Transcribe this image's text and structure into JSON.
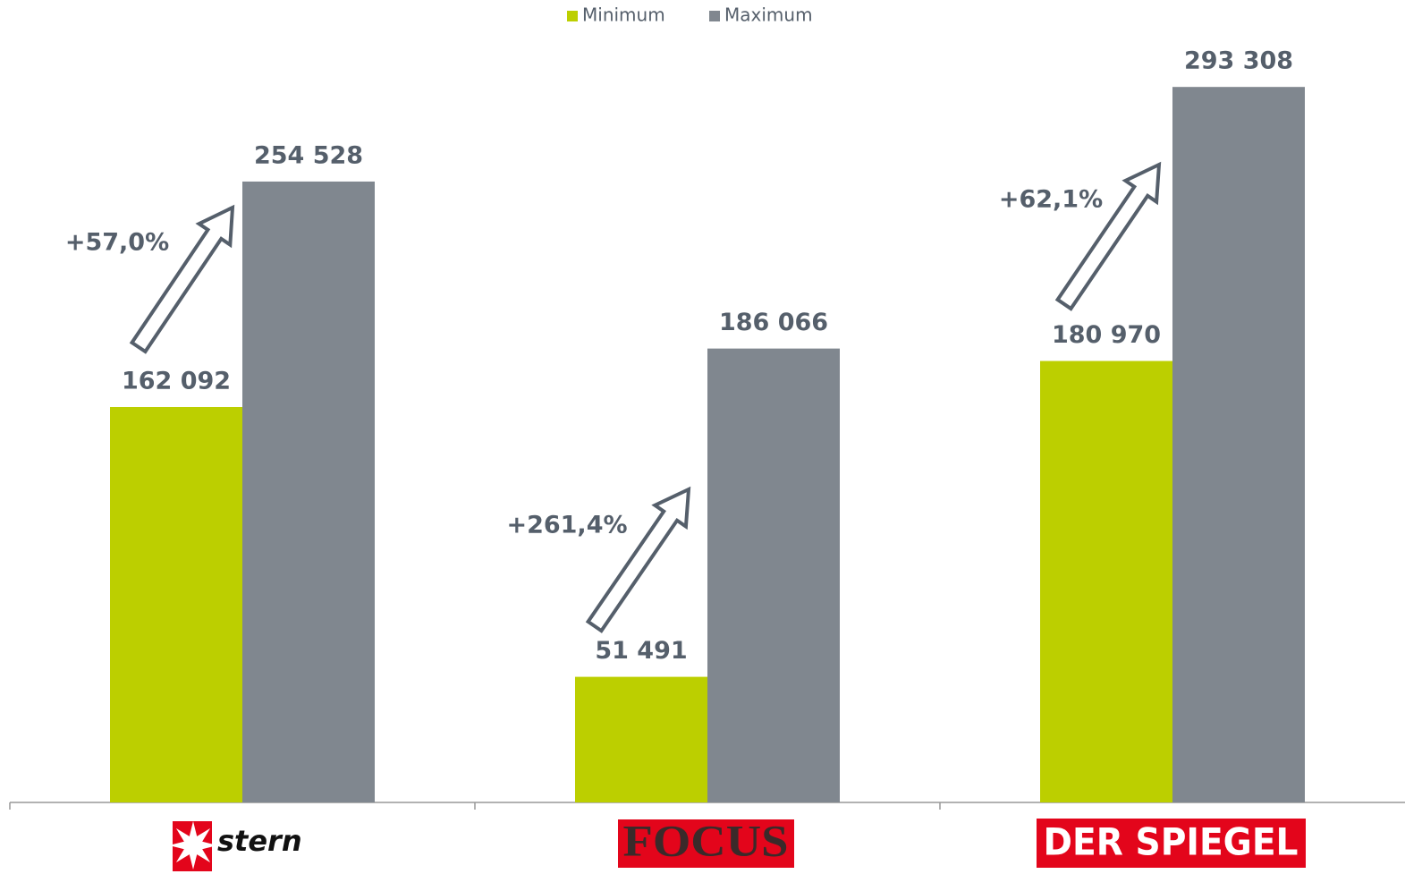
{
  "chart_data": {
    "type": "bar",
    "categories": [
      "stern",
      "FOCUS",
      "DER SPIEGEL"
    ],
    "series": [
      {
        "name": "Minimum",
        "color": "#bccf00",
        "values": [
          162092,
          51491,
          180970
        ],
        "value_labels": [
          "162 092",
          "51 491",
          "180 970"
        ]
      },
      {
        "name": "Maximum",
        "color": "#80878f",
        "values": [
          254528,
          186066,
          293308
        ],
        "value_labels": [
          "254 528",
          "186 066",
          "293 308"
        ]
      }
    ],
    "annotations": [
      "+57,0%",
      "+261,4%",
      "+62,1%"
    ],
    "ylim": [
      0,
      320000
    ],
    "legend": "top"
  }
}
